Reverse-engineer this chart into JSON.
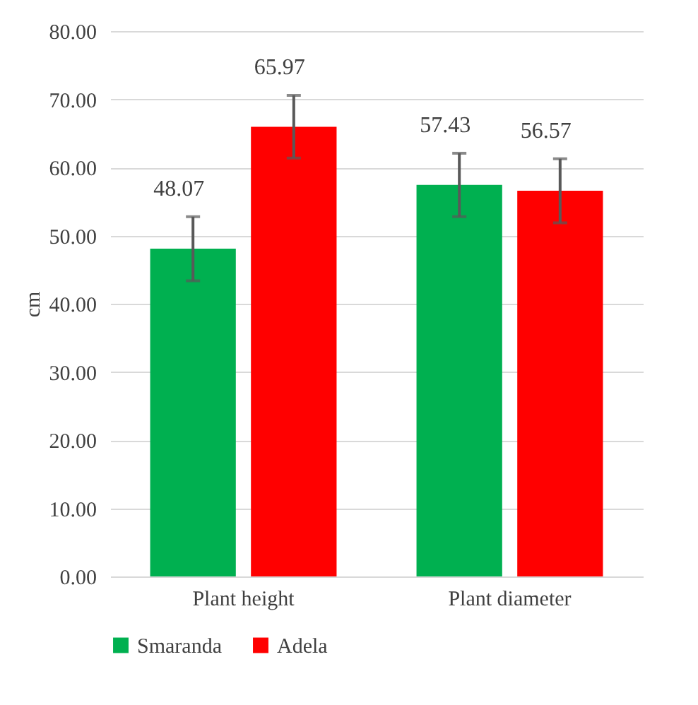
{
  "chart_data": {
    "type": "bar",
    "ylabel": "cm",
    "categories": [
      "Plant height",
      "Plant diameter"
    ],
    "series": [
      {
        "name": "Smaranda",
        "color": "#00b050",
        "values": [
          48.07,
          57.43
        ],
        "errors": [
          4.7,
          4.65
        ]
      },
      {
        "name": "Adela",
        "color": "#ff0000",
        "values": [
          65.97,
          56.57
        ],
        "errors": [
          4.6,
          4.7
        ]
      }
    ],
    "ylim": [
      0,
      80
    ],
    "yticks": [
      {
        "value": 0,
        "label": "0.00"
      },
      {
        "value": 10,
        "label": "10.00"
      },
      {
        "value": 20,
        "label": "20.00"
      },
      {
        "value": 30,
        "label": "30.00"
      },
      {
        "value": 40,
        "label": "40.00"
      },
      {
        "value": 50,
        "label": "50.00"
      },
      {
        "value": 60,
        "label": "60.00"
      },
      {
        "value": 70,
        "label": "70.00"
      },
      {
        "value": 80,
        "label": "80.00"
      }
    ],
    "grid": "y",
    "legend": "bottom",
    "data_labels": true
  }
}
